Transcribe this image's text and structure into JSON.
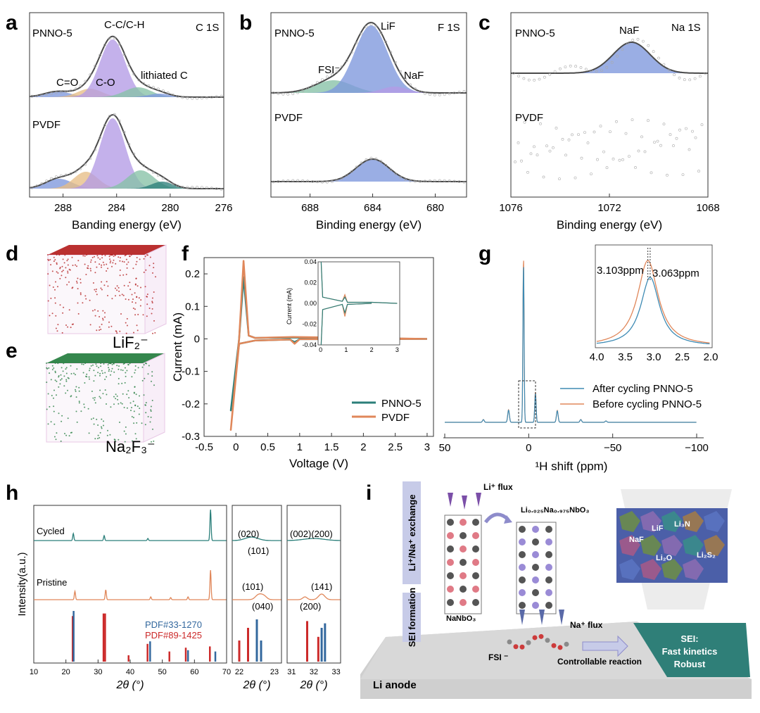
{
  "colors": {
    "purple": "#b49be6",
    "blue": "#7d97dc",
    "green": "#86c2a6",
    "orange": "#e7be86",
    "teal": "#2b7f7a",
    "copper": "#e0875a",
    "red": "#cc2a2a",
    "pdfblue": "#33689e"
  },
  "panel_labels": {
    "a": "a",
    "b": "b",
    "c": "c",
    "d": "d",
    "e": "e",
    "f": "f",
    "g": "g",
    "h": "h",
    "i": "i"
  },
  "chart_data": [
    {
      "id": "a",
      "type": "line",
      "title": "C 1S",
      "xlabel": "Banding energy (eV)",
      "xlim": [
        290.5,
        276
      ],
      "xticks": [
        288,
        284,
        280,
        276
      ],
      "samples": [
        "PNNO-5",
        "PVDF"
      ],
      "peaks": [
        {
          "name": "C=O",
          "center": 288.5,
          "color": "blue"
        },
        {
          "name": "C-O",
          "center": 286.2,
          "color": "orange"
        },
        {
          "name": "C-C/C-H",
          "center": 284.4,
          "color": "purple"
        },
        {
          "name": "lithiated C",
          "center": 282.3,
          "color": "green"
        }
      ]
    },
    {
      "id": "b",
      "type": "line",
      "title": "F 1S",
      "xlabel": "Binding energy (eV)",
      "xlim": [
        690.5,
        678
      ],
      "xticks": [
        688,
        684,
        680
      ],
      "samples": [
        "PNNO-5",
        "PVDF"
      ],
      "peaks": [
        {
          "name": "FSI⁻",
          "center": 686.5,
          "color": "green"
        },
        {
          "name": "LiF",
          "center": 684.6,
          "color": "blue"
        },
        {
          "name": "NaF",
          "center": 683.0,
          "color": "purple"
        }
      ]
    },
    {
      "id": "c",
      "type": "line",
      "title": "Na 1S",
      "xlabel": "Binding energy (eV)",
      "xlim": [
        1076,
        1068
      ],
      "xticks": [
        1076,
        1072,
        1068
      ],
      "samples": [
        "PNNO-5",
        "PVDF"
      ],
      "peaks": [
        {
          "name": "NaF",
          "center": 1071.1,
          "color": "blue"
        }
      ]
    },
    {
      "id": "f",
      "type": "line",
      "xlabel": "Voltage (V)",
      "ylabel": "Current (mA)",
      "xlim": [
        -0.5,
        3.1
      ],
      "ylim": [
        -0.3,
        0.25
      ],
      "xticks": [
        -0.5,
        0.0,
        0.5,
        1.0,
        1.5,
        2.0,
        2.5,
        3.0
      ],
      "yticks": [
        -0.3,
        -0.2,
        -0.1,
        0.0,
        0.1,
        0.2
      ],
      "series": [
        {
          "name": "PNNO-5",
          "color": "teal",
          "x": [
            3.0,
            1.0,
            0.92,
            0.85,
            0.3,
            0.05,
            -0.08,
            0.05,
            0.12,
            0.2,
            0.3,
            0.9,
            3.0
          ],
          "y": [
            0.0,
            -0.001,
            -0.01,
            -0.002,
            -0.005,
            -0.015,
            -0.22,
            0.0,
            0.19,
            0.01,
            0.003,
            0.004,
            0.0
          ]
        },
        {
          "name": "PVDF",
          "color": "copper",
          "x": [
            3.0,
            1.0,
            0.92,
            0.85,
            0.3,
            0.05,
            -0.08,
            0.05,
            0.12,
            0.2,
            0.3,
            0.9,
            3.0
          ],
          "y": [
            0.0,
            -0.001,
            -0.015,
            -0.002,
            -0.005,
            -0.015,
            -0.28,
            0.0,
            0.24,
            0.01,
            0.003,
            0.006,
            0.0
          ]
        }
      ],
      "inset": {
        "xticks": [
          0,
          1,
          2,
          3
        ],
        "yticks": [
          0.04,
          0.02,
          0.0,
          -0.02,
          -0.04
        ],
        "ylabel": "Current (mA)"
      }
    },
    {
      "id": "g",
      "type": "line",
      "xlabel": "¹H shift (ppm)",
      "xlim": [
        50,
        -100
      ],
      "xticks": [
        50,
        0,
        -50,
        -100
      ],
      "series": [
        {
          "name": "After cycling PNNO-5",
          "color": "teal"
        },
        {
          "name": "Before cycling PNNO-5",
          "color": "copper"
        }
      ],
      "inset": {
        "xticks": [
          4.0,
          3.5,
          3.0,
          2.5,
          2.0
        ],
        "peaks": [
          "3.103ppm",
          "3.063ppm"
        ]
      }
    },
    {
      "id": "h",
      "type": "line",
      "xlabel": "2θ (°)",
      "ylabel": "Intensity(a.u.)",
      "xticks_main": [
        10,
        20,
        30,
        40,
        50,
        60,
        70
      ],
      "xticks_mid": [
        22,
        23
      ],
      "xticks_right": [
        31,
        32,
        33
      ],
      "series": [
        "Cycled",
        "Pristine"
      ],
      "references": [
        "PDF#33-1270",
        "PDF#89-1425"
      ],
      "mid_labels": [
        "(020)",
        "(101)",
        "(101)",
        "(040)"
      ],
      "right_labels": [
        "(002)(200)",
        "(141)",
        "(200)"
      ]
    }
  ],
  "panel_d": {
    "label": "LiF₂⁻"
  },
  "panel_e": {
    "label": "Na₂F₃⁻"
  },
  "panel_i": {
    "exchange": "Li⁺/Na⁺ exchange",
    "sei_formation": "SEI formation",
    "li_flux": "Li⁺ flux",
    "product": "Li₀.₀₂₅Na₀.₉₇₅NbO₃",
    "nanbo3": "NaNbO₃",
    "na_flux": "Na⁺ flux",
    "fsi": "FSI ⁻",
    "controllable": "Controllable reaction",
    "sei_title": "SEI:",
    "sei_line1": "Fast kinetics",
    "sei_line2": "Robust",
    "li_anode": "Li  anode",
    "grains": [
      "NaF",
      "LiF",
      "Li₃N",
      "Li₂O",
      "Li₂S₂"
    ]
  }
}
